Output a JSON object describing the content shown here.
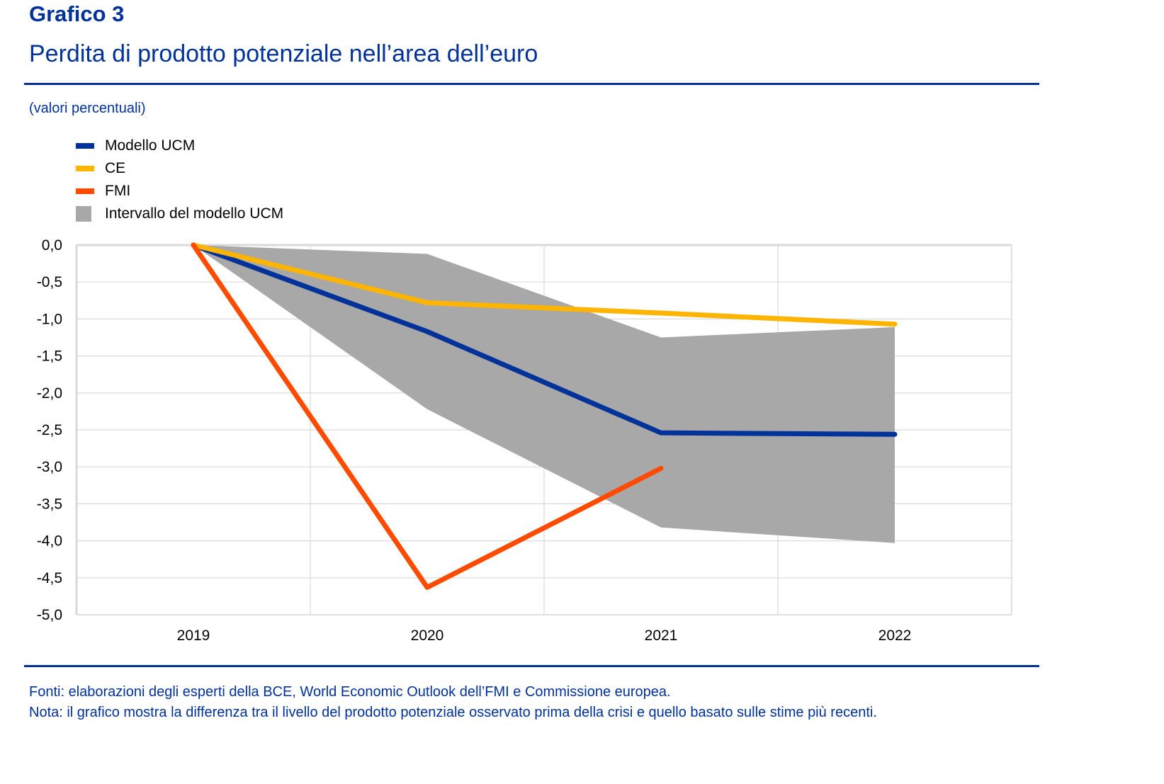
{
  "header": {
    "label": "Grafico 3",
    "title": "Perdita di prodotto potenziale nell’area dell’euro",
    "units": "(valori percentuali)"
  },
  "colors": {
    "brand": "#003299",
    "ucm": "#003299",
    "ce": "#FFB400",
    "fmi": "#FF4B00",
    "band": "#A8A8A8",
    "grid": "#D9D9D9"
  },
  "chart_data": {
    "type": "line",
    "title": "Perdita di prodotto potenziale nell’area dell’euro",
    "subtitle": "(valori percentuali)",
    "xlabel": "",
    "ylabel": "",
    "categories": [
      "2019",
      "2020",
      "2021",
      "2022"
    ],
    "ylim": [
      -5.0,
      0.0
    ],
    "yticks": [
      0.0,
      -0.5,
      -1.0,
      -1.5,
      -2.0,
      -2.5,
      -3.0,
      -3.5,
      -4.0,
      -4.5,
      -5.0
    ],
    "ytick_labels": [
      "0,0",
      "-0,5",
      "-1,0",
      "-1,5",
      "-2,0",
      "-2,5",
      "-3,0",
      "-3,5",
      "-4,0",
      "-4,5",
      "-5,0"
    ],
    "grid": true,
    "legend_position": "top-left",
    "band": {
      "name": "Intervallo del modello UCM",
      "upper": [
        0.0,
        -0.12,
        -1.25,
        -1.11
      ],
      "lower": [
        0.0,
        -2.22,
        -3.82,
        -4.03
      ]
    },
    "series": [
      {
        "name": "Modello UCM",
        "color_key": "ucm",
        "values": [
          0.0,
          -1.17,
          -2.54,
          -2.56
        ]
      },
      {
        "name": "CE",
        "color_key": "ce",
        "values": [
          0.0,
          -0.78,
          -0.92,
          -1.07
        ]
      },
      {
        "name": "FMI",
        "color_key": "fmi",
        "values": [
          0.0,
          -4.63,
          -3.02,
          null
        ]
      }
    ]
  },
  "legend": [
    {
      "label": "Modello UCM",
      "color_key": "ucm",
      "kind": "line"
    },
    {
      "label": "CE",
      "color_key": "ce",
      "kind": "line"
    },
    {
      "label": "FMI",
      "color_key": "fmi",
      "kind": "line"
    },
    {
      "label": "Intervallo del modello UCM",
      "color_key": "band",
      "kind": "area"
    }
  ],
  "footer": {
    "sources": "Fonti: elaborazioni degli esperti della BCE, World Economic Outlook dell’FMI e Commissione europea.",
    "note": "Nota: il grafico mostra la differenza tra il livello del prodotto potenziale osservato prima della crisi e quello basato sulle stime più recenti."
  }
}
